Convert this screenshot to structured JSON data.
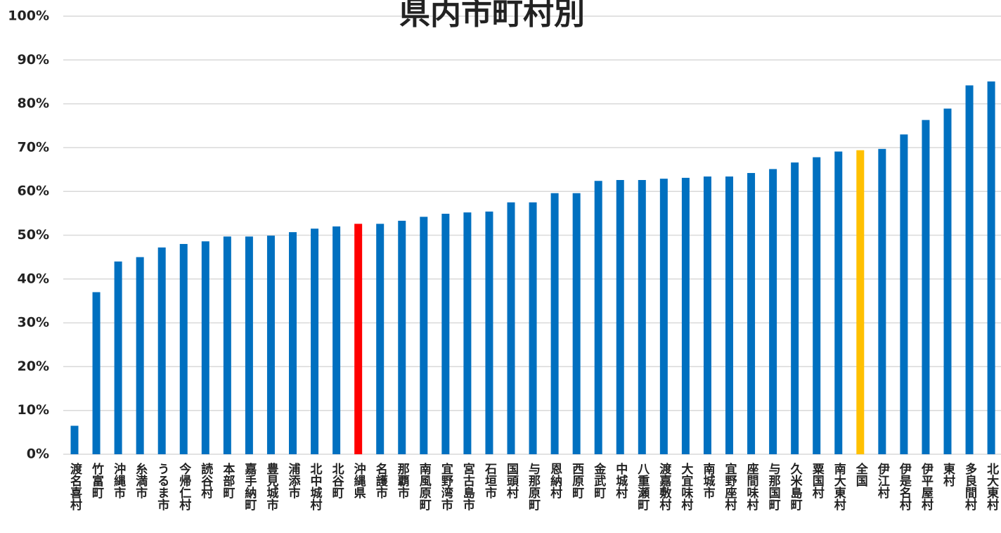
{
  "chart_data": {
    "type": "bar",
    "title": "県内市町村別",
    "categories": [
      "渡名喜村",
      "竹富町",
      "沖縄市",
      "糸満市",
      "うるま市",
      "今帰仁村",
      "読谷村",
      "本部町",
      "嘉手納町",
      "豊見城市",
      "浦添市",
      "北中城村",
      "北谷町",
      "沖縄県",
      "名護市",
      "那覇市",
      "南風原町",
      "宜野湾市",
      "宮古島市",
      "石垣市",
      "国頭村",
      "与那原町",
      "恩納村",
      "西原町",
      "金武町",
      "中城村",
      "八重瀬町",
      "渡嘉敷村",
      "大宜味村",
      "南城市",
      "宜野座村",
      "座間味村",
      "与那国町",
      "久米島町",
      "粟国村",
      "南大東村",
      "全国",
      "伊江村",
      "伊是名村",
      "伊平屋村",
      "東村",
      "多良間村",
      "北大東村"
    ],
    "values": [
      6.5,
      37,
      44,
      45,
      47.2,
      48,
      48.6,
      49.7,
      49.7,
      49.9,
      50.7,
      51.5,
      52,
      52.6,
      52.6,
      53.3,
      54.2,
      54.9,
      55.2,
      55.4,
      57.5,
      57.5,
      59.6,
      59.6,
      62.4,
      62.6,
      62.6,
      62.9,
      63.1,
      63.4,
      63.4,
      64.2,
      65.1,
      66.6,
      67.8,
      69.1,
      69.4,
      69.7,
      73,
      76.3,
      78.9,
      84.2,
      85.1
    ],
    "colors": [
      "#0070c0",
      "#0070c0",
      "#0070c0",
      "#0070c0",
      "#0070c0",
      "#0070c0",
      "#0070c0",
      "#0070c0",
      "#0070c0",
      "#0070c0",
      "#0070c0",
      "#0070c0",
      "#0070c0",
      "#ff0000",
      "#0070c0",
      "#0070c0",
      "#0070c0",
      "#0070c0",
      "#0070c0",
      "#0070c0",
      "#0070c0",
      "#0070c0",
      "#0070c0",
      "#0070c0",
      "#0070c0",
      "#0070c0",
      "#0070c0",
      "#0070c0",
      "#0070c0",
      "#0070c0",
      "#0070c0",
      "#0070c0",
      "#0070c0",
      "#0070c0",
      "#0070c0",
      "#0070c0",
      "#ffc000",
      "#0070c0",
      "#0070c0",
      "#0070c0",
      "#0070c0",
      "#0070c0",
      "#0070c0"
    ],
    "ylim": [
      0,
      100
    ],
    "yticks": [
      {
        "value": 0,
        "label": "0%"
      },
      {
        "value": 10,
        "label": "10%"
      },
      {
        "value": 20,
        "label": "20%"
      },
      {
        "value": 30,
        "label": "30%"
      },
      {
        "value": 40,
        "label": "40%"
      },
      {
        "value": 50,
        "label": "50%"
      },
      {
        "value": 60,
        "label": "60%"
      },
      {
        "value": 70,
        "label": "70%"
      },
      {
        "value": 80,
        "label": "80%"
      },
      {
        "value": 90,
        "label": "90%"
      },
      {
        "value": 100,
        "label": "100%"
      }
    ],
    "grid": true
  }
}
